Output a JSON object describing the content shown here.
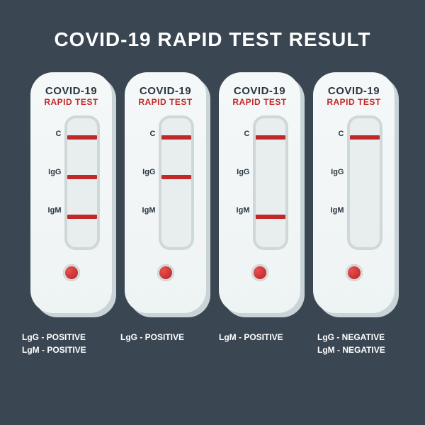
{
  "page": {
    "title": "COVID-19 RAPID TEST RESULT",
    "background_color": "#3a4652",
    "title_color": "#ffffff"
  },
  "cassette_style": {
    "body_color": "#f0f5f5",
    "shadow_color": "#c8d4d8",
    "strip_frame_color": "#cfd8d9",
    "strip_color": "#e8edee",
    "band_color": "#c22828",
    "well_color": "#c22828",
    "text_dark": "#2a3640",
    "text_red": "#c22828",
    "band_positions": {
      "C": 24,
      "IgG": 80,
      "IgM": 136
    },
    "marker_labels": [
      "C",
      "IgG",
      "IgM"
    ]
  },
  "cassette_header": {
    "title": "COVID-19",
    "subtitle": "RAPID TEST"
  },
  "tests": [
    {
      "bands": {
        "C": true,
        "IgG": true,
        "IgM": true
      },
      "result_line1": "LgG - POSITIVE",
      "result_line2": "LgM - POSITIVE"
    },
    {
      "bands": {
        "C": true,
        "IgG": true,
        "IgM": false
      },
      "result_line1": "LgG - POSITIVE",
      "result_line2": ""
    },
    {
      "bands": {
        "C": true,
        "IgG": false,
        "IgM": true
      },
      "result_line1": "LgM - POSITIVE",
      "result_line2": ""
    },
    {
      "bands": {
        "C": true,
        "IgG": false,
        "IgM": false
      },
      "result_line1": "LgG - NEGATIVE",
      "result_line2": "LgM - NEGATIVE"
    }
  ]
}
